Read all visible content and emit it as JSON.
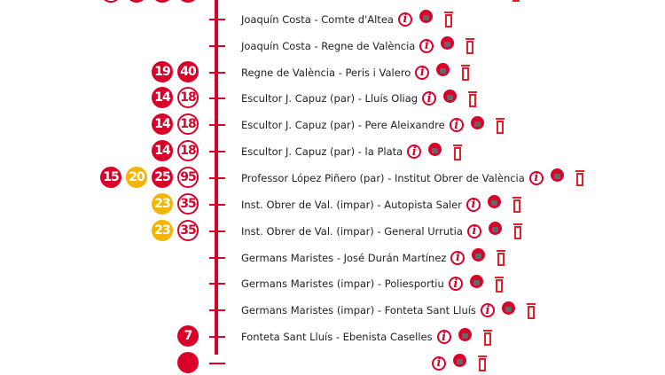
{
  "colors": {
    "line": "#d9002a",
    "badge_red": "#d9002a",
    "badge_yellow": "#f5b400"
  },
  "icons": [
    "info-icon",
    "bus-ticket-icon",
    "bin-icon"
  ],
  "stops": [
    {
      "name": "",
      "lines": [
        {
          "n": "",
          "style": "out"
        },
        {
          "n": "",
          "style": "red"
        },
        {
          "n": "",
          "style": "red"
        },
        {
          "n": "",
          "style": "red"
        }
      ],
      "partial": "top"
    },
    {
      "name": "Joaquín Costa - Comte d'Altea",
      "lines": []
    },
    {
      "name": "Joaquín Costa - Regne de València",
      "lines": []
    },
    {
      "name": "Regne de València - Peris i Valero",
      "lines": [
        {
          "n": "19",
          "style": "red"
        },
        {
          "n": "40",
          "style": "red"
        }
      ]
    },
    {
      "name": "Escultor J. Capuz (par) - Lluís Oliag",
      "lines": [
        {
          "n": "14",
          "style": "red"
        },
        {
          "n": "18",
          "style": "out"
        }
      ]
    },
    {
      "name": "Escultor J. Capuz (par) - Pere Aleixandre",
      "lines": [
        {
          "n": "14",
          "style": "red"
        },
        {
          "n": "18",
          "style": "out"
        }
      ]
    },
    {
      "name": "Escultor J. Capuz (par) - la Plata",
      "lines": [
        {
          "n": "14",
          "style": "red"
        },
        {
          "n": "18",
          "style": "out"
        }
      ]
    },
    {
      "name": "Professor López Piñero (par) - Institut Obrer de València",
      "lines": [
        {
          "n": "15",
          "style": "red"
        },
        {
          "n": "20",
          "style": "yel"
        },
        {
          "n": "25",
          "style": "red"
        },
        {
          "n": "95",
          "style": "out"
        }
      ]
    },
    {
      "name": "Inst. Obrer de Val. (impar) - Autopista Saler",
      "lines": [
        {
          "n": "23",
          "style": "yel"
        },
        {
          "n": "35",
          "style": "out"
        }
      ]
    },
    {
      "name": "Inst. Obrer de Val. (impar) - General Urrutia",
      "lines": [
        {
          "n": "23",
          "style": "yel"
        },
        {
          "n": "35",
          "style": "out"
        }
      ]
    },
    {
      "name": "Germans Maristes - José Durán Martínez",
      "lines": []
    },
    {
      "name": "Germans Maristes (impar) - Poliesportiu",
      "lines": []
    },
    {
      "name": "Germans Maristes (impar) - Fonteta Sant Lluís",
      "lines": []
    },
    {
      "name": "Fonteta Sant Lluís - Ebenista Caselles",
      "lines": [
        {
          "n": "7",
          "style": "red"
        }
      ]
    },
    {
      "name": "",
      "lines": [
        {
          "n": "",
          "style": "red"
        }
      ],
      "partial": "bottom"
    }
  ]
}
